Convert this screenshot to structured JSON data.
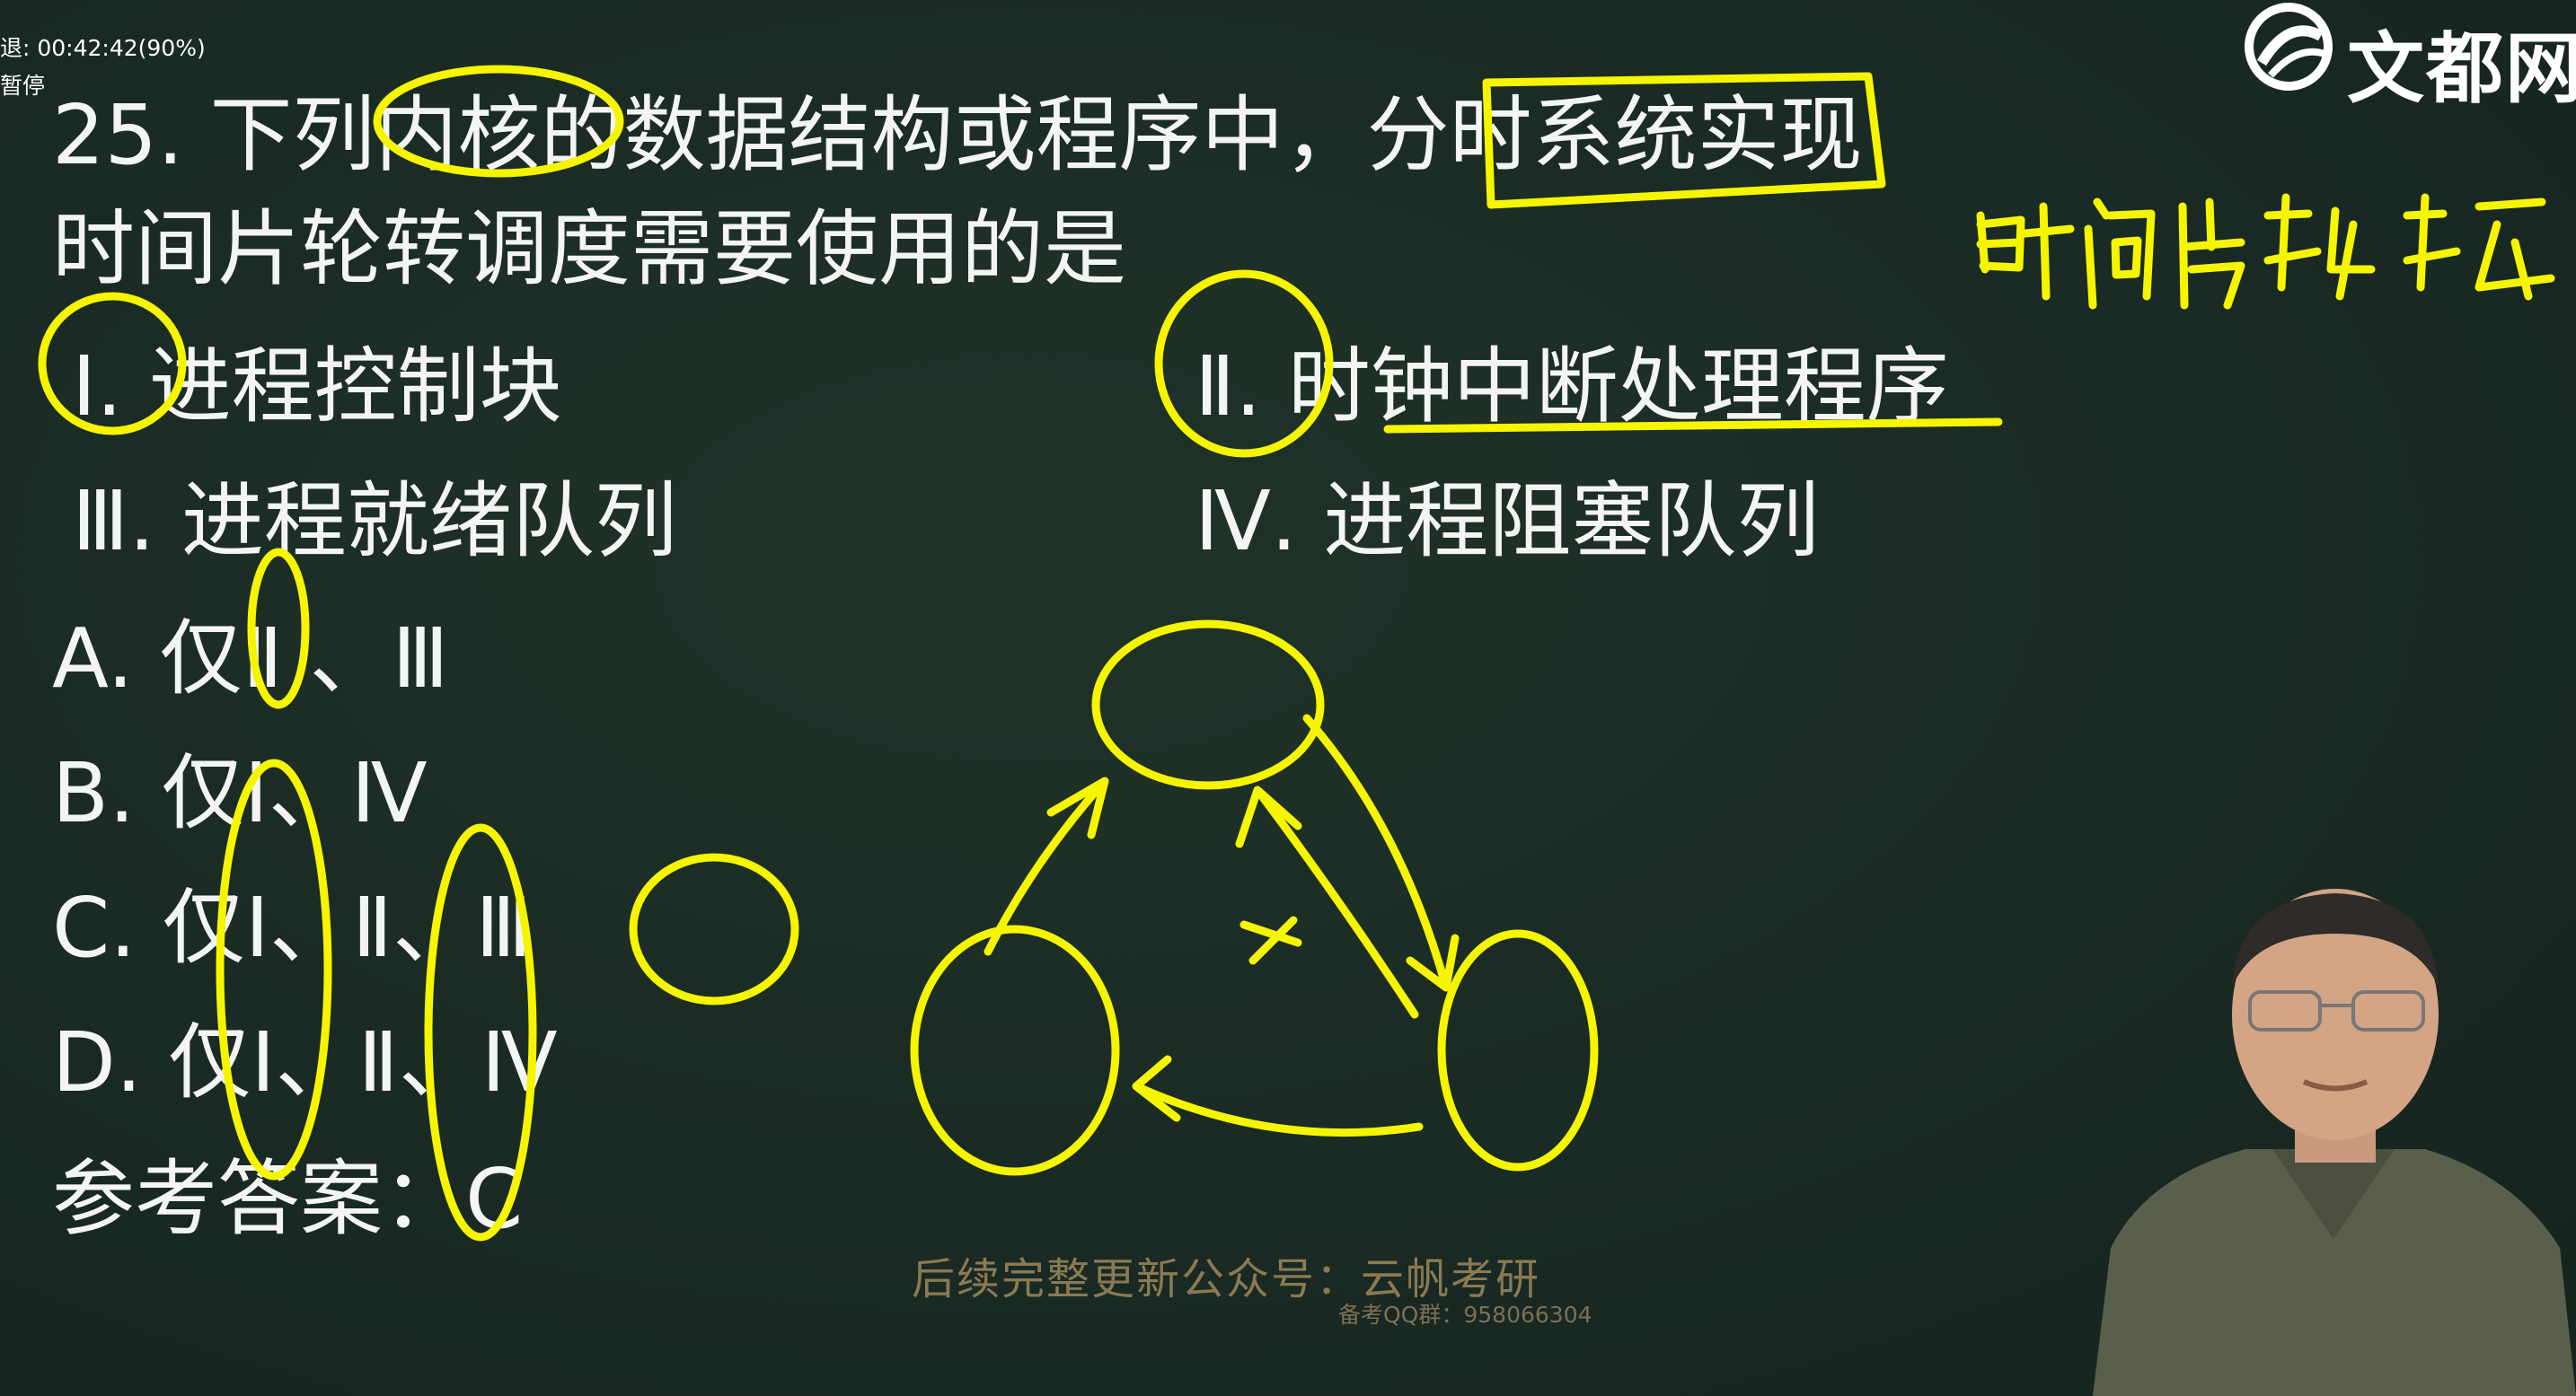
{
  "player": {
    "status_line1": "退: 00:42:42(90%)",
    "status_line2": "暂停"
  },
  "logo": {
    "brand_text": "文都网"
  },
  "question": {
    "line1": "25. 下列内核的数据结构或程序中，分时系统实现",
    "line2": "时间片轮转调度需要使用的是"
  },
  "items": {
    "i1": "Ⅰ. 进程控制块",
    "i2": "Ⅱ. 时钟中断处理程序",
    "i3": "Ⅲ. 进程就绪队列",
    "i4": "Ⅳ. 进程阻塞队列"
  },
  "choices": {
    "A": "A. 仅Ⅱ 、Ⅲ",
    "B": "B. 仅Ⅰ、Ⅳ",
    "C": "C. 仅Ⅰ、Ⅱ、Ⅲ",
    "D": "D. 仅Ⅰ、Ⅱ、Ⅳ"
  },
  "answer": "参考答案：C",
  "handwriting": {
    "note": "时间片轮转"
  },
  "watermark": {
    "line1": "后续完整更新公众号：云帆考研",
    "line2": "备考QQ群：958066304"
  },
  "colors": {
    "ink": "#f5f500",
    "board": "#1a2a24",
    "text": "#f4f4f4"
  }
}
